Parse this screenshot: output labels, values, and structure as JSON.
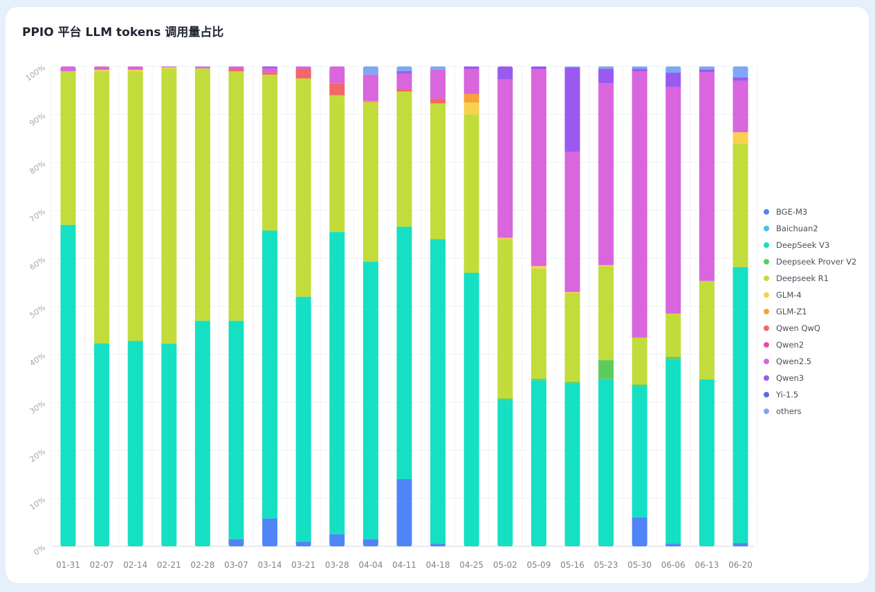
{
  "title": "PPIO 平台 LLM tokens 调用量占比",
  "chart_data": {
    "type": "bar",
    "stacked": true,
    "ylim": [
      0,
      100
    ],
    "yticks": [
      "0%",
      "10%",
      "20%",
      "30%",
      "40%",
      "50%",
      "60%",
      "70%",
      "80%",
      "90%",
      "100%"
    ],
    "grid": true,
    "legend_position": "right",
    "categories": [
      "01-31",
      "02-07",
      "02-14",
      "02-21",
      "02-28",
      "03-07",
      "03-14",
      "03-21",
      "03-28",
      "04-04",
      "04-11",
      "04-18",
      "04-25",
      "05-02",
      "05-09",
      "05-16",
      "05-23",
      "05-30",
      "06-06",
      "06-13",
      "06-20"
    ],
    "series": [
      {
        "name": "BGE-M3",
        "color": "#5085f8",
        "values": [
          0,
          0,
          0,
          0,
          0,
          1.5,
          5.8,
          1,
          2.5,
          1.5,
          14,
          0.5,
          0,
          0,
          0,
          0,
          0,
          6,
          0.5,
          0,
          0.7
        ]
      },
      {
        "name": "Baichuan2",
        "color": "#45c1ea",
        "values": [
          0,
          0,
          0,
          0,
          0,
          0,
          0,
          0,
          0,
          0,
          0,
          0,
          0,
          0,
          0,
          0,
          0,
          0,
          0,
          0,
          0
        ]
      },
      {
        "name": "DeepSeek V3",
        "color": "#16e0c3",
        "values": [
          67,
          42.5,
          43,
          42.2,
          47,
          45.5,
          60,
          51,
          63,
          57.8,
          52.6,
          63.5,
          57,
          30.5,
          34.6,
          34,
          34.8,
          27.4,
          38.5,
          34.8,
          57.5
        ]
      },
      {
        "name": "Deepseek Prover V2",
        "color": "#5ccd5c",
        "values": [
          0,
          0,
          0,
          0,
          0,
          0,
          0,
          0,
          0,
          0,
          0,
          0,
          0,
          0.3,
          0.3,
          0.3,
          4,
          0.3,
          0.5,
          0,
          0
        ]
      },
      {
        "name": "Deepseek R1",
        "color": "#c2dc3b",
        "values": [
          32,
          57,
          56.5,
          57.4,
          52.6,
          52,
          32.5,
          45.5,
          28.5,
          33.2,
          28.2,
          28.3,
          33,
          33.2,
          23,
          18.5,
          19.6,
          9.8,
          9,
          20.5,
          25.7
        ]
      },
      {
        "name": "GLM-4",
        "color": "#f8d14f",
        "values": [
          0,
          0.3,
          0.3,
          0.2,
          0,
          0,
          0,
          0,
          0,
          0,
          0,
          0,
          2.5,
          0.3,
          0.5,
          0.2,
          0.2,
          0,
          0,
          0,
          2.4
        ]
      },
      {
        "name": "GLM-Z1",
        "color": "#f9a13a",
        "values": [
          0,
          0,
          0,
          0,
          0,
          0,
          0,
          0,
          0,
          0.3,
          0,
          0,
          1.8,
          0,
          0,
          0,
          0,
          0,
          0,
          0,
          0
        ]
      },
      {
        "name": "Qwen QwQ",
        "color": "#f26767",
        "values": [
          0,
          0,
          0,
          0,
          0,
          0.5,
          0.5,
          2,
          2.5,
          0,
          0.5,
          1,
          0,
          0,
          0,
          0,
          0,
          0,
          0,
          0,
          0
        ]
      },
      {
        "name": "Qwen2",
        "color": "#ef4ba4",
        "values": [
          0,
          0,
          0,
          0,
          0,
          0,
          0,
          0,
          0,
          0,
          0,
          0,
          0,
          0,
          0,
          0,
          0,
          0,
          0,
          0,
          0
        ]
      },
      {
        "name": "Qwen2.5",
        "color": "#d966dc",
        "values": [
          1,
          0.7,
          0.7,
          0.2,
          0.4,
          0.5,
          0.8,
          0.5,
          3.5,
          5.5,
          3.2,
          6,
          5.2,
          33,
          41,
          29.2,
          37.9,
          55.5,
          47.2,
          43.5,
          10.7
        ]
      },
      {
        "name": "Qwen3",
        "color": "#9a5af0",
        "values": [
          0,
          0,
          0,
          0,
          0,
          0,
          0.4,
          0,
          0,
          0,
          0.3,
          0,
          0.5,
          2.7,
          0.6,
          17.6,
          3,
          0.5,
          3,
          0.6,
          0.7
        ]
      },
      {
        "name": "Yi-1.5",
        "color": "#5a6be0",
        "values": [
          0,
          0,
          0,
          0,
          0,
          0,
          0,
          0,
          0,
          0,
          0.2,
          0,
          0,
          0,
          0,
          0,
          0,
          0,
          0,
          0,
          0
        ]
      },
      {
        "name": "others",
        "color": "#7fa7f5",
        "values": [
          0,
          0,
          0,
          0,
          0,
          0,
          0,
          0,
          0,
          1.7,
          1,
          0.7,
          0,
          0,
          0,
          0.2,
          0.5,
          0.5,
          1.3,
          0.6,
          2.3
        ]
      }
    ]
  }
}
